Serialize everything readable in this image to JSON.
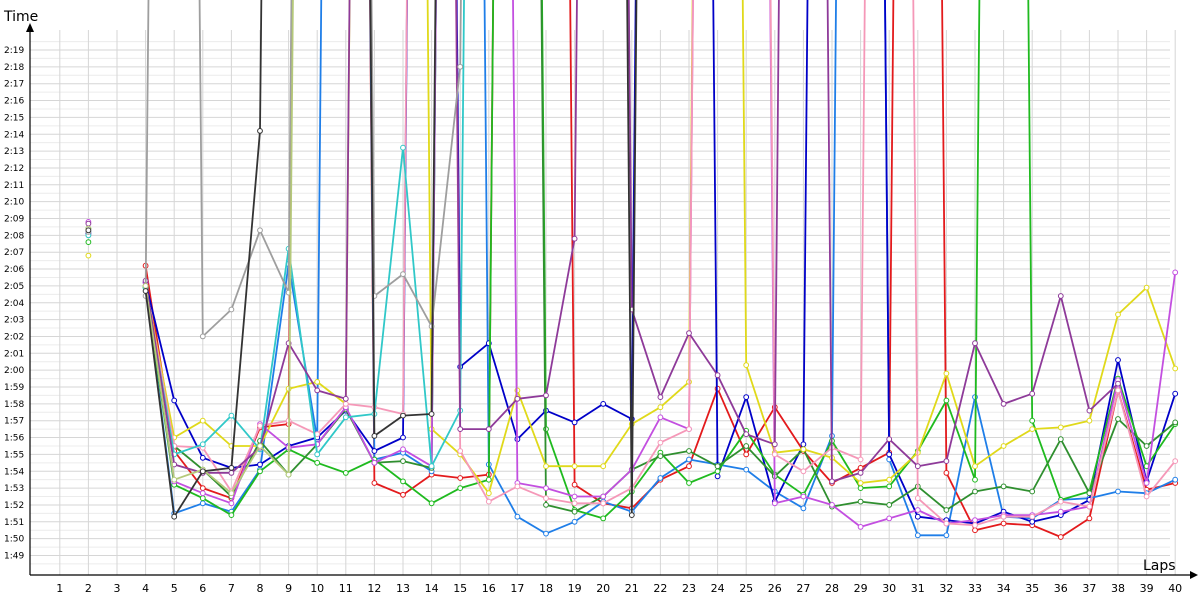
{
  "chart_data": {
    "type": "line",
    "ylabel": "Time",
    "xlabel": "Laps",
    "x": [
      1,
      2,
      3,
      4,
      5,
      6,
      7,
      8,
      9,
      10,
      11,
      12,
      13,
      14,
      15,
      16,
      17,
      18,
      19,
      20,
      21,
      22,
      23,
      24,
      25,
      26,
      27,
      28,
      29,
      30,
      31,
      32,
      33,
      34,
      35,
      36,
      37,
      38,
      39,
      40
    ],
    "y_ticks": [
      "1:49",
      "1:50",
      "1:51",
      "1:52",
      "1:53",
      "1:54",
      "1:55",
      "1:56",
      "1:57",
      "1:58",
      "1:59",
      "2:00",
      "2:01",
      "2:02",
      "2:03",
      "2:04",
      "2:05",
      "2:06",
      "2:07",
      "2:08",
      "2:09",
      "2:10",
      "2:11",
      "2:12",
      "2:13",
      "2:14",
      "2:15",
      "2:16",
      "2:17",
      "2:18",
      "2:19"
    ],
    "ylim_seconds": [
      107.7,
      141.2
    ],
    "grid": true,
    "series": [
      {
        "color": "#e31a1c",
        "values": [
          null,
          300,
          null,
          126.2,
          115.2,
          113.0,
          112.4,
          116.6,
          116.8,
          300,
          300,
          113.3,
          112.6,
          113.8,
          113.6,
          113.8,
          300,
          300,
          113.2,
          112.1,
          111.8,
          113.5,
          114.3,
          118.9,
          115.0,
          117.8,
          115.2,
          113.3,
          114.2,
          115.1,
          300,
          113.9,
          110.5,
          110.9,
          110.8,
          110.1,
          111.2,
          118.8,
          112.9,
          113.3
        ]
      },
      {
        "color": "#1f7ee8",
        "values": [
          null,
          128.2,
          null,
          124.9,
          111.5,
          112.1,
          111.6,
          114.1,
          126.3,
          115.9,
          300,
          114.7,
          115.1,
          114.0,
          300,
          114.4,
          111.3,
          110.3,
          111.0,
          112.2,
          111.6,
          113.6,
          114.7,
          114.4,
          114.1,
          112.8,
          111.8,
          116.1,
          300,
          114.7,
          110.2,
          110.2,
          118.4,
          111.3,
          111.2,
          112.3,
          112.4,
          112.8,
          112.7,
          113.5
        ]
      },
      {
        "color": "#0000c8",
        "values": [
          null,
          128.1,
          null,
          125.2,
          118.2,
          114.8,
          114.2,
          114.4,
          115.5,
          116.0,
          117.6,
          115.2,
          116.0,
          300,
          120.2,
          121.6,
          115.9,
          117.6,
          116.9,
          118.0,
          117.1,
          300,
          300,
          113.7,
          118.4,
          112.2,
          115.6,
          300,
          300,
          115.0,
          111.3,
          111.1,
          110.9,
          111.6,
          111.0,
          111.4,
          112.3,
          120.6,
          113.4,
          118.6
        ]
      },
      {
        "color": "#1fba1f",
        "values": [
          null,
          127.6,
          null,
          124.9,
          113.2,
          112.4,
          111.4,
          114.0,
          115.3,
          114.5,
          113.9,
          114.7,
          113.4,
          112.1,
          113.0,
          113.5,
          300,
          116.5,
          111.7,
          111.2,
          112.8,
          115.1,
          113.3,
          114.0,
          116.4,
          113.8,
          112.6,
          115.8,
          113.0,
          113.1,
          115.2,
          118.2,
          113.5,
          300,
          117.0,
          112.3,
          112.8,
          119.5,
          114.3,
          116.8
        ]
      },
      {
        "color": "#2f8f2f",
        "values": [
          null,
          128.4,
          null,
          125.0,
          115.5,
          114.1,
          112.5,
          115.8,
          113.8,
          115.6,
          117.7,
          114.5,
          114.6,
          114.2,
          300,
          300,
          300,
          112.0,
          111.6,
          112.5,
          114.1,
          114.9,
          115.2,
          114.3,
          115.5,
          113.7,
          115.3,
          111.9,
          112.2,
          112.0,
          113.1,
          111.7,
          112.8,
          113.1,
          112.8,
          115.9,
          112.7,
          117.1,
          115.5,
          116.9
        ]
      },
      {
        "color": "#e0d91a",
        "values": [
          null,
          126.8,
          null,
          125.0,
          116.0,
          117.0,
          115.5,
          115.5,
          118.9,
          119.3,
          118.0,
          300,
          300,
          116.5,
          115.0,
          112.7,
          118.8,
          114.3,
          114.3,
          114.3,
          116.8,
          117.8,
          119.3,
          300,
          120.3,
          115.1,
          115.3,
          114.8,
          113.3,
          113.5,
          115.1,
          119.8,
          114.3,
          115.5,
          116.5,
          116.6,
          117.0,
          123.3,
          124.9,
          120.1
        ]
      },
      {
        "color": "#c34fe0",
        "values": [
          null,
          128.8,
          null,
          125.2,
          113.4,
          112.7,
          112.1,
          116.8,
          115.4,
          115.6,
          117.8,
          114.5,
          115.3,
          114.3,
          300,
          300,
          113.3,
          113.0,
          112.5,
          112.5,
          114.1,
          117.2,
          116.5,
          300,
          300,
          112.1,
          112.5,
          112.0,
          110.7,
          111.2,
          111.7,
          110.9,
          111.1,
          111.4,
          111.4,
          111.6,
          111.9,
          119.4,
          113.3,
          125.8
        ]
      },
      {
        "color": "#f598b8",
        "values": [
          null,
          128.0,
          null,
          125.0,
          115.5,
          115.4,
          112.8,
          116.7,
          117.0,
          116.2,
          118.0,
          117.8,
          117.4,
          300,
          115.2,
          112.2,
          113.1,
          112.4,
          112.1,
          112.1,
          113.0,
          115.7,
          116.5,
          300,
          300,
          115.0,
          114.0,
          115.4,
          114.7,
          300,
          112.4,
          110.9,
          110.8,
          111.3,
          111.3,
          112.2,
          111.9,
          118.8,
          112.5,
          114.6
        ]
      },
      {
        "color": "#30c8c8",
        "values": [
          null,
          128.0,
          null,
          124.9,
          115.0,
          115.6,
          117.3,
          115.3,
          127.2,
          115.0,
          117.2,
          117.4,
          133.2,
          114.3,
          117.6,
          300,
          300,
          300,
          300,
          300,
          300,
          300,
          300,
          300,
          300,
          300,
          300,
          300,
          300,
          300,
          300,
          300,
          300,
          300,
          300,
          300,
          300,
          300,
          300,
          300
        ]
      },
      {
        "color": "#8e3a99",
        "values": [
          null,
          128.7,
          null,
          125.3,
          114.4,
          113.9,
          113.9,
          115.4,
          121.6,
          118.8,
          118.3,
          300,
          300,
          300,
          116.5,
          116.5,
          118.3,
          118.5,
          127.8,
          300,
          123.6,
          118.4,
          122.2,
          119.7,
          116.2,
          115.6,
          300,
          113.4,
          113.9,
          115.9,
          114.3,
          114.6,
          121.6,
          118.0,
          118.6,
          124.4,
          117.6,
          119.2,
          null,
          null
        ]
      },
      {
        "color": "#9e9e9e",
        "values": [
          null,
          128.2,
          null,
          124.4,
          300,
          122.0,
          123.6,
          128.3,
          124.6,
          300,
          300,
          124.4,
          125.7,
          122.6,
          138.0,
          300,
          300,
          300,
          null,
          null,
          null,
          null,
          null,
          null,
          null,
          null,
          null,
          null,
          null,
          null,
          null,
          null,
          null,
          null,
          null,
          null,
          null,
          null,
          null,
          null
        ]
      },
      {
        "color": "#b5c97a",
        "values": [
          null,
          128.4,
          null,
          125.0,
          113.5,
          114.1,
          112.7,
          115.5,
          113.8,
          300,
          300,
          300,
          300,
          300,
          300,
          300,
          300,
          300,
          300,
          300,
          300,
          300,
          300,
          300,
          300,
          300,
          300,
          300,
          300,
          300,
          300,
          300,
          300,
          300,
          300,
          300,
          300,
          300,
          300,
          300
        ]
      },
      {
        "color": "#333333",
        "values": [
          null,
          128.3,
          null,
          124.7,
          111.3,
          114.0,
          114.2,
          134.2,
          300,
          300,
          300,
          116.1,
          117.3,
          117.4,
          300,
          300,
          300,
          300,
          300,
          300,
          111.4,
          300,
          300,
          300,
          300,
          300,
          300,
          300,
          300,
          300,
          300,
          300,
          300,
          300,
          300,
          300,
          300,
          300,
          300,
          300
        ]
      }
    ]
  }
}
